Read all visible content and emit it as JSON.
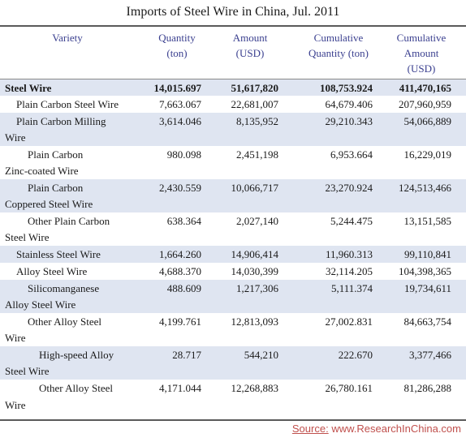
{
  "title": "Imports of Steel Wire in China, Jul. 2011",
  "columns": [
    {
      "lines": [
        "Variety"
      ]
    },
    {
      "lines": [
        "Quantity",
        "(ton)"
      ]
    },
    {
      "lines": [
        "Amount",
        "(USD)"
      ]
    },
    {
      "lines": [
        "Cumulative",
        "Quantity (ton)"
      ]
    },
    {
      "lines": [
        "Cumulative",
        "Amount",
        "(USD)"
      ]
    }
  ],
  "rows": [
    {
      "lines": [
        "Steel Wire"
      ],
      "quantity": "14,015.697",
      "amount": "51,617,820",
      "cum_quantity": "108,753.924",
      "cum_amount": "411,470,165"
    },
    {
      "lines": [
        "Plain Carbon Steel Wire"
      ],
      "quantity": "7,663.067",
      "amount": "22,681,007",
      "cum_quantity": "64,679.406",
      "cum_amount": "207,960,959"
    },
    {
      "lines": [
        "Plain Carbon Milling",
        "Wire"
      ],
      "quantity": "3,614.046",
      "amount": "8,135,952",
      "cum_quantity": "29,210.343",
      "cum_amount": "54,066,889"
    },
    {
      "lines": [
        "Plain Carbon",
        "Zinc-coated Wire"
      ],
      "quantity": "980.098",
      "amount": "2,451,198",
      "cum_quantity": "6,953.664",
      "cum_amount": "16,229,019"
    },
    {
      "lines": [
        "Plain Carbon",
        "Coppered Steel Wire"
      ],
      "quantity": "2,430.559",
      "amount": "10,066,717",
      "cum_quantity": "23,270.924",
      "cum_amount": "124,513,466"
    },
    {
      "lines": [
        "Other Plain Carbon",
        "Steel Wire"
      ],
      "quantity": "638.364",
      "amount": "2,027,140",
      "cum_quantity": "5,244.475",
      "cum_amount": "13,151,585"
    },
    {
      "lines": [
        "Stainless Steel Wire"
      ],
      "quantity": "1,664.260",
      "amount": "14,906,414",
      "cum_quantity": "11,960.313",
      "cum_amount": "99,110,841"
    },
    {
      "lines": [
        "Alloy Steel Wire"
      ],
      "quantity": "4,688.370",
      "amount": "14,030,399",
      "cum_quantity": "32,114.205",
      "cum_amount": "104,398,365"
    },
    {
      "lines": [
        "Silicomanganese",
        "Alloy Steel Wire"
      ],
      "quantity": "488.609",
      "amount": "1,217,306",
      "cum_quantity": "5,111.374",
      "cum_amount": "19,734,611"
    },
    {
      "lines": [
        "Other Alloy Steel",
        "Wire"
      ],
      "quantity": "4,199.761",
      "amount": "12,813,093",
      "cum_quantity": "27,002.831",
      "cum_amount": "84,663,754"
    },
    {
      "lines": [
        "High-speed Alloy",
        "Steel Wire"
      ],
      "quantity": "28.717",
      "amount": "544,210",
      "cum_quantity": "222.670",
      "cum_amount": "3,377,466"
    },
    {
      "lines": [
        "Other Alloy Steel",
        "Wire"
      ],
      "quantity": "4,171.044",
      "amount": "12,268,883",
      "cum_quantity": "26,780.161",
      "cum_amount": "81,286,288"
    }
  ],
  "source": {
    "label": "Source:",
    "text": "www.ResearchInChina.com"
  }
}
